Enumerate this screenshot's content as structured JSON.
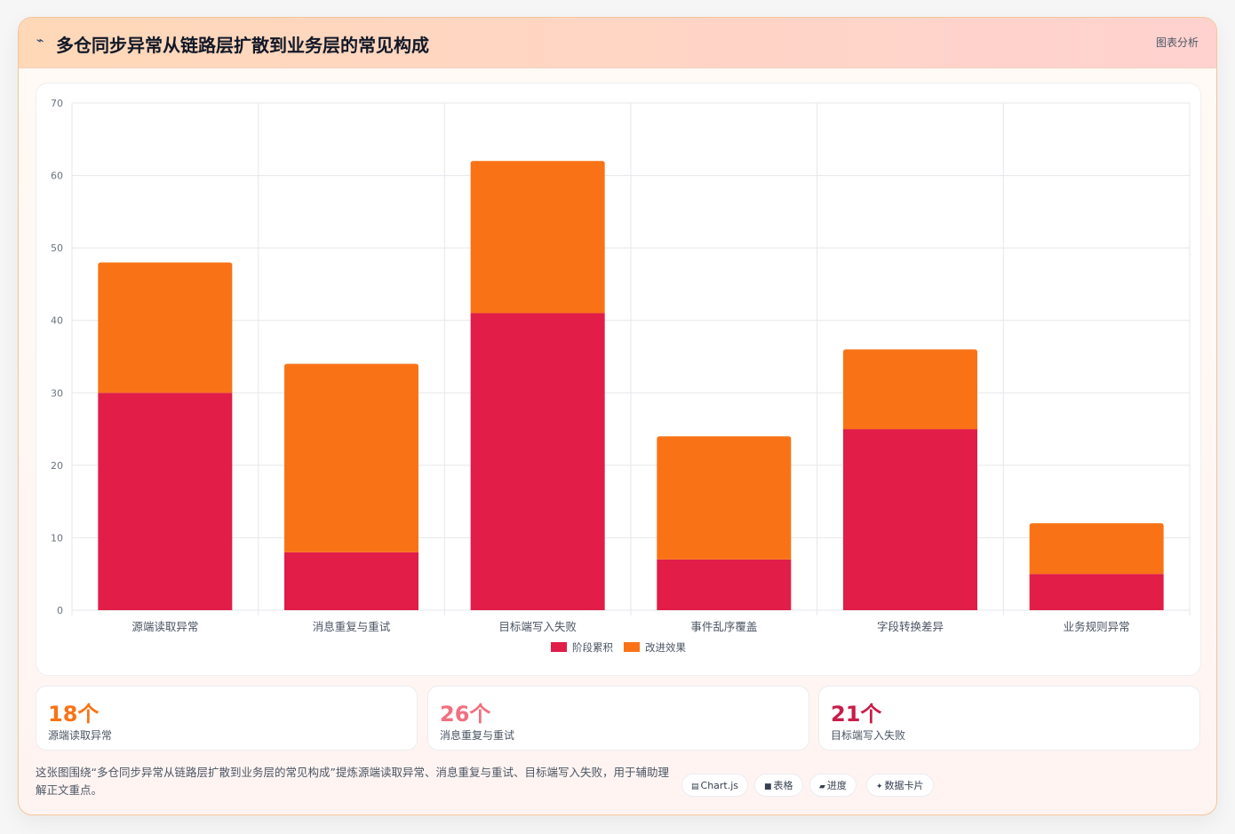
{
  "header": {
    "title": "多仓同步异常从链路层扩散到业务层的常见构成",
    "link_label": "图表分析"
  },
  "chart_data": {
    "type": "bar",
    "stacked": true,
    "categories": [
      "源端读取异常",
      "消息重复与重试",
      "目标端写入失败",
      "事件乱序覆盖",
      "字段转换差异",
      "业务规则异常"
    ],
    "series": [
      {
        "name": "阶段累积",
        "color": "#e11d48",
        "values": [
          30,
          8,
          41,
          7,
          25,
          5
        ]
      },
      {
        "name": "改进效果",
        "color": "#f97316",
        "values": [
          18,
          26,
          21,
          17,
          11,
          7
        ]
      }
    ],
    "ylim": [
      0,
      70
    ],
    "yticks": [
      0,
      10,
      20,
      30,
      40,
      50,
      60,
      70
    ],
    "grid": true,
    "legend_position": "bottom"
  },
  "stats": [
    {
      "value": "18个",
      "label": "源端读取异常",
      "color": "#f97316"
    },
    {
      "value": "26个",
      "label": "消息重复与重试",
      "color": "#f07080"
    },
    {
      "value": "21个",
      "label": "目标端写入失败",
      "color": "#c81e4a"
    }
  ],
  "description": "这张图围绕“多仓同步异常从链路层扩散到业务层的常见构成”提炼源端读取异常、消息重复与重试、目标端写入失败，用于辅助理解正文重点。",
  "chips": [
    {
      "icon": "▤",
      "label": "Chart.js"
    },
    {
      "icon": "■",
      "label": "表格"
    },
    {
      "icon": "▰",
      "label": "进度"
    },
    {
      "icon": "✦",
      "label": "数据卡片"
    }
  ]
}
